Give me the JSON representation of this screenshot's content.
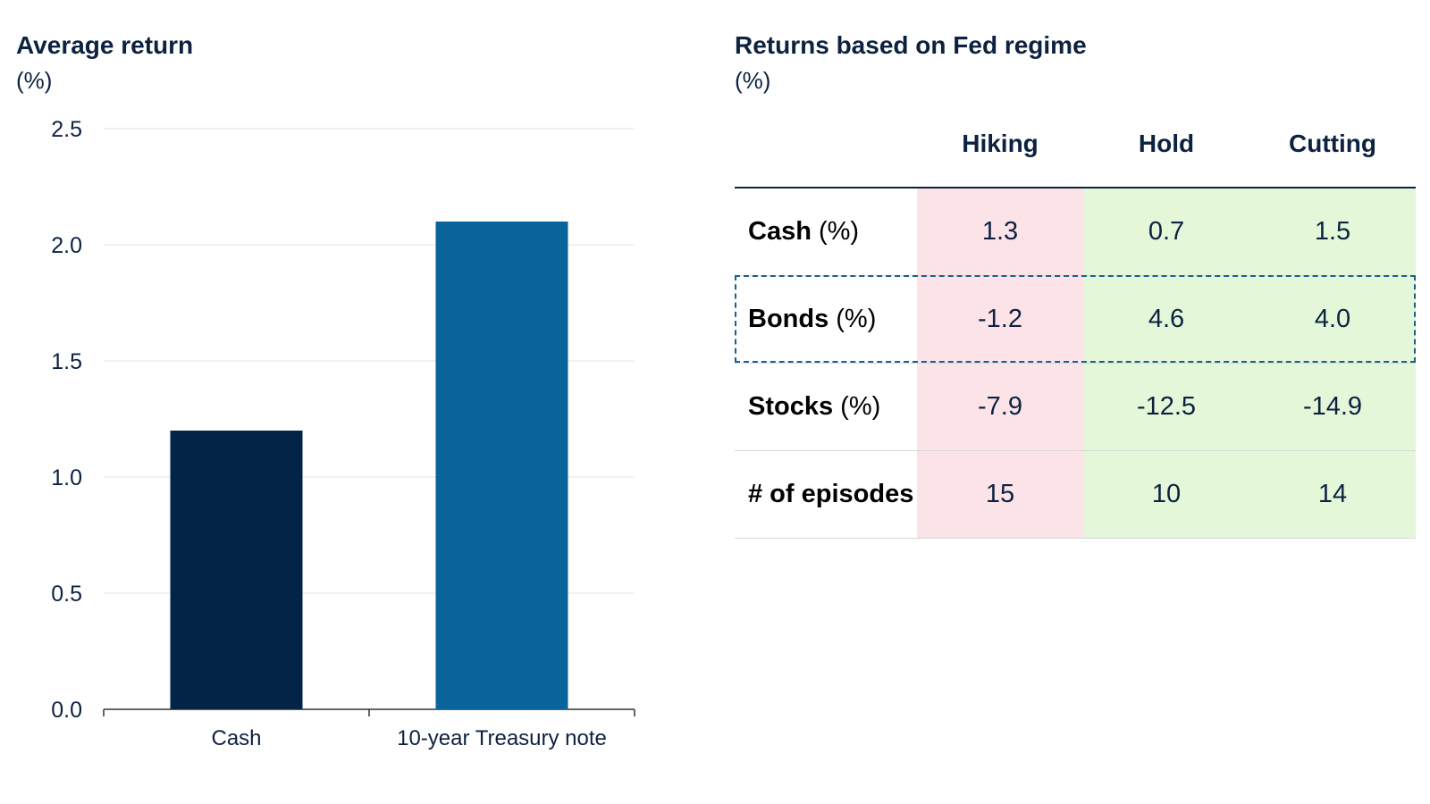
{
  "left_panel": {
    "title": "Average return",
    "subtitle": "(%)"
  },
  "right_panel": {
    "title": "Returns based on Fed regime",
    "subtitle": "(%)"
  },
  "chart_data": {
    "type": "bar",
    "title": "Average return",
    "ylabel": "(%)",
    "categories": [
      "Cash",
      "10-year Treasury note"
    ],
    "values": [
      1.2,
      2.1
    ],
    "colors": [
      "#032447",
      "#08649b"
    ],
    "ylim": [
      0,
      2.5
    ],
    "yticks": [
      "0.0",
      "0.5",
      "1.0",
      "1.5",
      "2.0",
      "2.5"
    ],
    "grid": true,
    "legend": "none"
  },
  "table": {
    "columns": [
      "Hiking",
      "Hold",
      "Cutting"
    ],
    "column_colors": [
      "#fbe3e8",
      "#e4f7d9",
      "#e4f7d9"
    ],
    "rows": [
      {
        "label_bold": "Cash",
        "label_rest": " (%)",
        "values": [
          "1.3",
          "0.7",
          "1.5"
        ]
      },
      {
        "label_bold": "Bonds",
        "label_rest": " (%)",
        "values": [
          "-1.2",
          "4.6",
          "4.0"
        ],
        "highlighted": true
      },
      {
        "label_bold": "Stocks",
        "label_rest": " (%)",
        "values": [
          "-7.9",
          "-12.5",
          "-14.9"
        ]
      },
      {
        "label_bold": "# of episodes",
        "label_rest": "",
        "values": [
          "15",
          "10",
          "14"
        ]
      }
    ]
  }
}
